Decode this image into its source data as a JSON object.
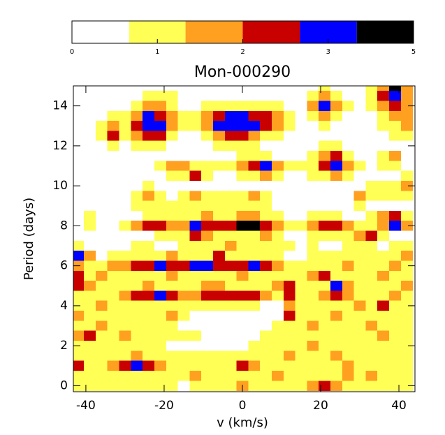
{
  "chart_data": {
    "type": "contour",
    "title": "Mon-000290",
    "x_label": "v (km/s)",
    "y_label": "Period (days)",
    "xlim": [
      -43.2,
      44.1
    ],
    "ylim": [
      -0.3,
      15
    ],
    "xticks": [
      -40,
      -20,
      0,
      20,
      40
    ],
    "yticks": [
      0,
      2,
      4,
      6,
      8,
      10,
      12,
      14
    ],
    "colorbar": {
      "ticks": [
        0,
        1,
        2,
        3,
        5
      ],
      "bounds": [
        0,
        0.67,
        1.33,
        2,
        2.67,
        3.67,
        5
      ],
      "colors": [
        "#ffffff",
        "#ffff55",
        "#ffa020",
        "#c80000",
        "#0000ff",
        "#000000"
      ]
    },
    "x": [
      -42,
      -39,
      -36,
      -33,
      -30,
      -27,
      -24,
      -21,
      -18,
      -15,
      -12,
      -9,
      -6,
      -3,
      0,
      3,
      6,
      9,
      12,
      15,
      18,
      21,
      24,
      27,
      30,
      33,
      36,
      39,
      42
    ],
    "y": [
      15,
      14.5,
      14,
      13.5,
      13,
      12.5,
      12,
      11.5,
      11,
      10.5,
      10,
      9.5,
      9,
      8.5,
      8,
      7.5,
      7,
      6.5,
      6,
      5.5,
      5,
      4.5,
      4,
      3.5,
      3,
      2.5,
      2,
      1.5,
      1,
      0.5,
      0
    ],
    "z": [
      [
        0,
        0,
        0,
        0,
        0,
        0,
        0,
        0,
        0,
        0,
        0,
        0,
        0,
        0,
        0,
        0,
        0,
        0,
        0,
        0,
        0,
        1,
        0,
        0,
        0,
        1,
        1.5,
        4,
        1.5
      ],
      [
        0,
        0,
        0,
        0,
        0,
        0,
        1,
        1,
        1,
        0,
        0,
        0,
        0,
        0,
        0,
        0,
        0,
        0,
        0,
        0,
        1,
        1.5,
        1,
        0,
        0,
        1,
        2,
        3,
        1.5
      ],
      [
        0,
        0,
        0,
        0,
        0,
        1,
        1.5,
        1.5,
        1,
        0,
        0,
        1,
        1,
        1,
        1,
        1,
        1,
        1,
        0,
        0,
        1.5,
        3,
        1.5,
        1,
        0,
        1,
        1.5,
        2,
        1.5
      ],
      [
        0,
        0,
        0,
        1,
        1,
        1.5,
        3,
        2,
        1.5,
        1,
        1,
        1.5,
        2,
        3,
        3,
        2,
        2,
        1.5,
        1,
        0,
        1,
        1.5,
        1,
        0,
        0,
        0,
        1,
        1.5,
        1.5
      ],
      [
        0,
        0,
        1,
        1.5,
        1,
        2,
        3,
        3,
        1.5,
        1,
        1,
        1.5,
        3,
        3,
        3,
        3,
        2,
        1.5,
        1,
        0,
        0,
        1,
        0,
        0,
        0,
        0,
        1,
        1,
        1.5
      ],
      [
        0,
        0,
        1,
        2,
        1,
        1.5,
        2,
        2,
        1,
        0,
        0,
        1,
        1.5,
        2,
        2,
        1.5,
        1,
        1,
        0,
        0,
        0,
        0,
        0,
        0,
        0,
        0,
        0,
        1,
        1
      ],
      [
        0,
        0,
        0,
        1,
        0,
        1,
        1,
        1,
        0,
        0,
        0,
        0,
        1,
        1,
        1,
        1,
        0,
        0,
        0,
        0,
        0,
        1,
        1,
        0,
        0,
        0,
        0,
        0,
        0
      ],
      [
        0,
        0,
        0,
        0,
        0,
        0,
        0,
        0,
        0,
        0,
        0,
        0,
        0,
        0,
        1,
        1,
        1,
        0,
        0,
        0,
        1,
        1.5,
        2,
        1,
        0,
        0,
        1,
        1.5,
        0
      ],
      [
        0,
        0,
        0,
        0,
        0,
        0,
        0,
        1,
        1.5,
        1.5,
        1,
        1,
        1,
        1,
        1.5,
        2,
        3,
        1.5,
        1,
        1,
        1,
        2,
        3,
        1.5,
        1,
        0,
        1,
        1,
        0
      ],
      [
        0,
        0,
        0,
        0,
        0,
        0,
        0,
        0,
        1,
        1,
        2,
        1,
        0,
        0,
        1,
        1,
        1.5,
        1,
        0,
        0,
        1,
        1,
        1.5,
        1,
        0,
        0,
        0,
        0,
        1
      ],
      [
        0,
        0,
        0,
        0,
        0,
        0,
        1,
        0,
        0,
        0,
        0,
        0,
        0,
        0,
        0,
        0,
        0,
        0,
        0,
        0,
        0,
        0,
        0,
        0,
        0,
        1,
        1,
        1,
        1.5
      ],
      [
        0,
        0,
        0,
        0,
        0,
        1,
        1.5,
        1,
        0,
        1,
        1.5,
        1,
        1,
        1,
        1,
        1.5,
        1,
        0,
        0,
        0,
        0,
        0,
        0,
        0,
        1.5,
        1,
        1,
        1,
        1
      ],
      [
        0,
        0,
        0,
        0,
        0,
        1,
        1,
        1,
        1,
        1,
        1,
        1,
        1,
        1,
        1,
        1,
        1,
        0,
        0,
        0,
        0,
        0,
        0,
        0,
        1,
        0,
        0,
        0,
        0
      ],
      [
        0,
        1,
        0,
        0,
        0,
        0,
        1,
        1,
        1,
        1,
        1,
        1.5,
        1,
        1,
        1.5,
        1.5,
        1,
        1,
        0,
        0,
        1,
        1,
        1,
        0,
        0,
        1,
        1.5,
        2,
        1
      ],
      [
        0,
        1,
        0,
        0,
        1,
        1.5,
        2,
        2,
        1.5,
        1.5,
        3,
        2,
        2,
        2,
        4,
        4,
        2,
        1.5,
        1,
        1,
        1.5,
        2,
        2,
        1.5,
        1,
        1,
        1.5,
        3,
        1.5
      ],
      [
        0,
        0,
        0,
        0,
        0,
        0,
        0,
        1,
        1,
        1,
        2,
        1.5,
        1,
        1,
        1,
        1,
        1.5,
        1,
        0,
        0,
        1,
        1,
        1,
        1,
        1.5,
        2,
        1,
        0,
        0
      ],
      [
        1,
        0,
        0,
        0,
        0,
        1,
        1,
        0,
        0,
        1,
        1,
        1,
        1,
        1.5,
        1,
        1,
        1,
        1,
        1,
        0,
        1,
        0,
        0,
        1,
        1,
        1,
        0,
        1,
        1
      ],
      [
        3,
        1.5,
        0,
        1,
        1,
        1,
        1,
        1,
        1.5,
        1,
        1,
        1,
        2,
        1,
        1,
        1,
        1,
        1,
        0,
        0,
        1,
        1,
        1,
        1,
        1,
        1,
        1,
        1,
        1.5
      ],
      [
        1.5,
        1,
        1,
        1.5,
        1.5,
        2,
        2,
        3,
        2,
        2,
        3,
        3,
        2,
        2,
        2,
        3,
        2,
        1.5,
        1,
        1,
        1,
        1,
        1,
        1.5,
        1,
        1,
        1,
        1.5,
        1
      ],
      [
        2,
        1,
        1.5,
        1,
        1,
        1,
        1,
        1,
        1.5,
        1,
        1,
        1,
        1,
        1,
        1.5,
        1,
        1,
        1,
        1,
        1,
        1.5,
        2,
        1,
        1,
        1,
        1,
        1.5,
        1,
        1
      ],
      [
        2,
        1.5,
        1,
        1,
        1,
        1,
        1.5,
        1,
        1,
        1,
        1,
        1.5,
        1.5,
        1,
        1,
        1,
        1,
        1.5,
        2,
        1,
        1,
        1,
        3,
        1.5,
        1,
        1,
        1,
        1,
        1.5
      ],
      [
        1,
        1,
        1,
        1,
        1.5,
        2,
        2,
        3,
        2,
        1.5,
        1.5,
        2,
        2,
        2,
        2,
        2,
        1.5,
        1,
        2,
        1,
        1,
        1.5,
        2,
        1.5,
        1,
        1,
        1,
        1.5,
        1
      ],
      [
        1,
        1,
        1.5,
        1,
        1,
        1,
        1,
        1,
        1,
        1,
        1,
        1,
        1,
        1,
        1,
        1,
        0,
        0,
        1.5,
        1,
        1,
        1,
        1,
        1,
        1.5,
        1,
        2,
        1,
        1
      ],
      [
        1.5,
        1,
        1,
        1,
        1,
        1,
        1,
        1,
        1.5,
        1,
        0,
        0,
        0,
        0,
        0,
        0,
        0,
        0,
        2,
        1,
        1,
        1,
        1.5,
        1,
        1,
        1,
        1,
        1,
        1
      ],
      [
        1,
        1,
        1.5,
        1,
        1,
        1,
        1,
        1,
        1,
        0,
        0,
        0,
        0,
        0,
        0,
        0,
        0,
        1,
        1,
        1,
        1.5,
        1,
        1,
        1,
        1,
        1.5,
        1,
        1,
        1
      ],
      [
        1.5,
        2,
        1,
        1,
        1.5,
        1,
        1,
        1,
        1,
        1,
        1,
        0,
        0,
        0,
        0,
        0,
        1,
        1,
        1,
        1,
        1,
        1,
        1,
        1,
        1,
        1,
        1.5,
        1,
        1
      ],
      [
        1,
        1,
        1,
        1,
        1,
        1,
        1,
        1,
        0,
        0,
        0,
        0,
        0,
        0,
        0,
        1,
        1,
        1,
        1,
        1,
        1.5,
        1,
        1,
        1,
        1,
        1,
        1,
        1,
        1
      ],
      [
        1,
        1,
        1,
        1,
        1,
        1.5,
        1,
        1,
        1,
        1,
        1,
        1,
        1,
        1,
        1,
        1,
        1,
        1,
        1.5,
        1,
        1,
        1,
        1.5,
        1,
        1,
        1,
        1,
        1,
        1
      ],
      [
        2,
        1,
        1,
        1.5,
        2,
        3,
        2,
        1.5,
        1,
        1,
        1,
        1,
        1,
        1,
        2,
        1.5,
        1,
        1,
        1,
        1,
        1,
        1,
        1,
        1.5,
        1,
        1,
        1,
        1,
        1
      ],
      [
        1,
        1,
        1,
        1,
        1,
        1,
        1,
        1,
        1,
        1,
        1.5,
        1,
        1,
        1,
        1,
        1,
        1,
        1.5,
        1,
        1,
        1,
        1,
        1,
        1.5,
        1,
        1.5,
        1,
        1,
        1
      ],
      [
        1,
        1,
        1,
        1,
        1,
        1,
        1,
        1,
        1,
        0,
        1,
        1,
        1,
        1,
        1.5,
        1,
        1,
        1,
        1,
        1,
        1.5,
        2,
        1.5,
        1,
        1,
        1,
        1,
        1,
        1
      ]
    ]
  }
}
